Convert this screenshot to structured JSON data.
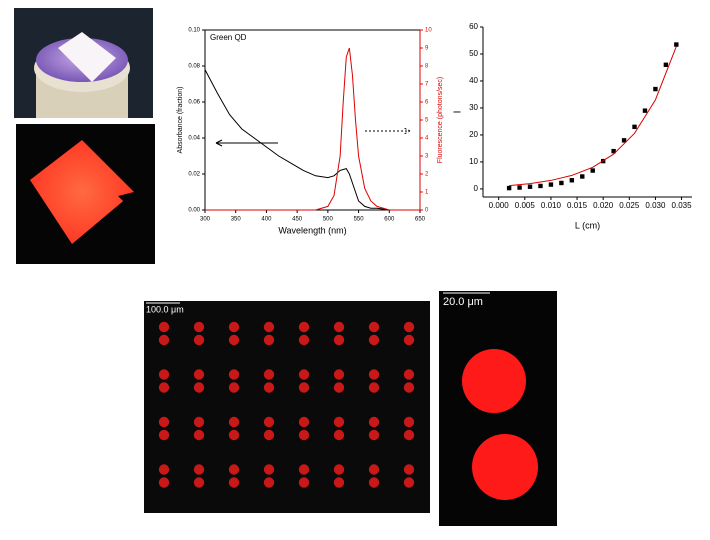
{
  "chart_data": [
    {
      "type": "line",
      "title": "Green QD",
      "xlabel": "Wavelength (nm)",
      "ylabel": "Absorbance (fraction)",
      "y2label": "Fluorescence (photons/sec)",
      "x": [
        300,
        320,
        340,
        360,
        380,
        400,
        420,
        440,
        460,
        480,
        500,
        510,
        520,
        525,
        530,
        535,
        540,
        545,
        550,
        560,
        570,
        580,
        600,
        650
      ],
      "series": [
        {
          "color": "#000000",
          "values": [
            0.078,
            0.065,
            0.053,
            0.045,
            0.04,
            0.035,
            0.03,
            0.026,
            0.022,
            0.019,
            0.018,
            0.019,
            0.022,
            0.0225,
            0.023,
            0.02,
            0.015,
            0.01,
            0.005,
            0.002,
            0.001,
            0.001,
            0,
            0
          ]
        },
        {
          "color": "#dd0000",
          "axis": "y2",
          "values": [
            0,
            0,
            0,
            0,
            0,
            0,
            0,
            0,
            0,
            0,
            0.2,
            0.8,
            3,
            6,
            8.5,
            9,
            7.5,
            5,
            3,
            1.2,
            0.5,
            0.2,
            0,
            0
          ]
        }
      ],
      "xlim": [
        300,
        650
      ],
      "xticks": [
        300,
        350,
        400,
        450,
        500,
        550,
        600,
        650
      ],
      "ylim": [
        0,
        0.1
      ],
      "yticks": [
        {
          "value": 0,
          "label": "0.00"
        },
        {
          "value": 0.02,
          "label": "0.02"
        },
        {
          "value": 0.04,
          "label": "0.04"
        },
        {
          "value": 0.06,
          "label": "0.06"
        },
        {
          "value": 0.08,
          "label": "0.08"
        },
        {
          "value": 0.1,
          "label": "0.10"
        }
      ],
      "y2lim": [
        0,
        10
      ],
      "y2ticks": [
        0,
        1,
        2,
        3,
        4,
        5,
        6,
        7,
        8,
        9,
        10
      ]
    },
    {
      "type": "scatter",
      "xlabel": "L (cm)",
      "ylabel": "I",
      "series": [
        {
          "style": "markers",
          "color": "#000000",
          "x": [
            0.002,
            0.004,
            0.006,
            0.008,
            0.01,
            0.012,
            0.014,
            0.016,
            0.018,
            0.02,
            0.022,
            0.024,
            0.026,
            0.028,
            0.03,
            0.032,
            0.034
          ],
          "values": [
            0.3,
            0.5,
            0.8,
            1.1,
            1.6,
            2.2,
            3.2,
            4.6,
            6.8,
            10.3,
            14,
            18,
            23,
            29,
            37,
            46,
            53.5
          ]
        },
        {
          "style": "line",
          "color": "#dd0000",
          "x": [
            0.002,
            0.006,
            0.01,
            0.014,
            0.018,
            0.022,
            0.026,
            0.03,
            0.034
          ],
          "values": [
            1.23,
            1.96,
            3.14,
            5,
            8,
            12.9,
            20.6,
            33,
            52.8
          ]
        }
      ],
      "xlim": [
        -0.003,
        0.037
      ],
      "xticks": [
        {
          "value": 0,
          "label": "0.000"
        },
        {
          "value": 0.005,
          "label": "0.005"
        },
        {
          "value": 0.01,
          "label": "0.010"
        },
        {
          "value": 0.015,
          "label": "0.015"
        },
        {
          "value": 0.02,
          "label": "0.020"
        },
        {
          "value": 0.025,
          "label": "0.025"
        },
        {
          "value": 0.03,
          "label": "0.030"
        },
        {
          "value": 0.035,
          "label": "0.035"
        }
      ],
      "ylim": [
        -3,
        60
      ],
      "yticks": [
        0,
        10,
        20,
        30,
        40,
        50,
        60
      ]
    }
  ],
  "micrographs": [
    {
      "scale_label": "100.0 μm"
    },
    {
      "scale_label": "20.0 μm"
    }
  ]
}
